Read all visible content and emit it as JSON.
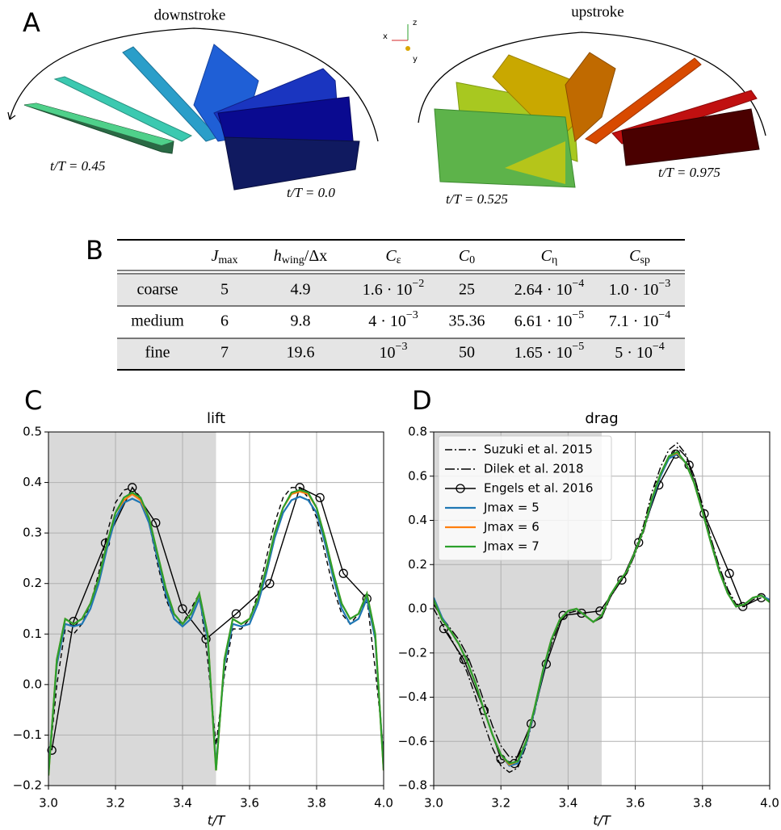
{
  "panel_a": {
    "label": "A",
    "downstroke": "downstroke",
    "upstroke": "upstroke",
    "times": [
      "t/T = 0.45",
      "t/T = 0.0",
      "t/T = 0.525",
      "t/T = 0.975"
    ],
    "axes": [
      "x",
      "z",
      "y"
    ]
  },
  "table": {
    "label": "B",
    "header": [
      {
        "main": "J",
        "sub": "max"
      },
      {
        "main": "h",
        "sub": "wing",
        "rest": "/Δx"
      },
      {
        "main": "C",
        "sub": "ε"
      },
      {
        "main": "C",
        "sub": "0"
      },
      {
        "main": "C",
        "sub": "η"
      },
      {
        "main": "C",
        "sub": "sp"
      }
    ],
    "rows": [
      [
        "coarse",
        5,
        4.9,
        {
          "main": "1.6 · 10",
          "sup": "−2"
        },
        25,
        {
          "main": "2.64 · 10",
          "sup": "−4"
        },
        {
          "main": "1.0 · 10",
          "sup": "−3"
        }
      ],
      [
        "medium",
        6,
        9.8,
        {
          "main": "4 · 10",
          "sup": "−3"
        },
        35.36,
        {
          "main": "6.61 · 10",
          "sup": "−5"
        },
        {
          "main": "7.1 · 10",
          "sup": "−4"
        }
      ],
      [
        "fine",
        7,
        19.6,
        {
          "main": "10",
          "sup": "−3"
        },
        50,
        {
          "main": "1.65 · 10",
          "sup": "−5"
        },
        {
          "main": "5 · 10",
          "sup": "−4"
        }
      ]
    ]
  },
  "chart_data": [
    {
      "type": "line",
      "panel_label": "C",
      "title": "lift",
      "xlabel": "t/T",
      "grid": true,
      "shade": [
        3.0,
        3.5
      ],
      "xlim": [
        3.0,
        4.0
      ],
      "ylim": [
        -0.2,
        0.5
      ],
      "xticks": [
        {
          "value": 3,
          "label": "3.0"
        },
        3.2,
        3.4,
        3.6,
        3.8,
        {
          "value": 4,
          "label": "4.0"
        }
      ],
      "yticks": [
        {
          "value": -0.2,
          "label": "−0.2"
        },
        {
          "value": -0.1,
          "label": "−0.1"
        },
        {
          "value": 0,
          "label": "0.0"
        },
        0.1,
        0.2,
        0.3,
        0.4,
        0.5
      ],
      "x": [
        3.0,
        3.025,
        3.05,
        3.075,
        3.1,
        3.125,
        3.15,
        3.175,
        3.2,
        3.225,
        3.25,
        3.275,
        3.3,
        3.325,
        3.35,
        3.375,
        3.4,
        3.425,
        3.45,
        3.475,
        3.5,
        3.525,
        3.55,
        3.575,
        3.6,
        3.625,
        3.65,
        3.675,
        3.7,
        3.725,
        3.75,
        3.775,
        3.8,
        3.825,
        3.85,
        3.875,
        3.9,
        3.925,
        3.95,
        3.975,
        4.0
      ],
      "series": [
        {
          "name": "Suzuki et al. 2015",
          "color": "#000000",
          "style": "dashed",
          "values": [
            -0.17,
            0.0,
            0.11,
            0.1,
            0.12,
            0.16,
            0.22,
            0.3,
            0.36,
            0.385,
            0.39,
            0.37,
            0.32,
            0.24,
            0.17,
            0.13,
            0.12,
            0.15,
            0.18,
            0.05,
            -0.12,
            0.02,
            0.11,
            0.11,
            0.13,
            0.18,
            0.25,
            0.32,
            0.37,
            0.39,
            0.39,
            0.37,
            0.33,
            0.26,
            0.19,
            0.14,
            0.12,
            0.14,
            0.17,
            0.03,
            -0.13
          ]
        },
        {
          "name": "Engels et al. 2016",
          "color": "#000000",
          "style": "solid",
          "marker": "circle",
          "x": [
            3.01,
            3.075,
            3.17,
            3.25,
            3.32,
            3.4,
            3.47,
            3.56,
            3.66,
            3.75,
            3.81,
            3.88,
            3.95
          ],
          "values": [
            -0.13,
            0.125,
            0.28,
            0.39,
            0.32,
            0.15,
            0.09,
            0.14,
            0.2,
            0.39,
            0.37,
            0.22,
            0.17
          ]
        },
        {
          "name": "Jmax = 5",
          "color": "#1f77b4",
          "style": "solid",
          "values": [
            -0.17,
            0.04,
            0.12,
            0.115,
            0.12,
            0.15,
            0.2,
            0.27,
            0.33,
            0.36,
            0.368,
            0.36,
            0.32,
            0.25,
            0.18,
            0.13,
            0.115,
            0.13,
            0.17,
            0.09,
            -0.16,
            0.04,
            0.12,
            0.115,
            0.12,
            0.16,
            0.22,
            0.29,
            0.34,
            0.365,
            0.372,
            0.365,
            0.34,
            0.28,
            0.21,
            0.15,
            0.12,
            0.13,
            0.17,
            0.09,
            -0.16
          ]
        },
        {
          "name": "Jmax = 6",
          "color": "#ff7f0e",
          "style": "solid",
          "values": [
            -0.18,
            0.05,
            0.13,
            0.12,
            0.13,
            0.16,
            0.21,
            0.28,
            0.34,
            0.365,
            0.377,
            0.365,
            0.33,
            0.26,
            0.19,
            0.14,
            0.12,
            0.14,
            0.18,
            0.1,
            -0.17,
            0.05,
            0.13,
            0.12,
            0.13,
            0.17,
            0.23,
            0.3,
            0.35,
            0.377,
            0.382,
            0.377,
            0.35,
            0.29,
            0.22,
            0.16,
            0.13,
            0.14,
            0.18,
            0.1,
            -0.17
          ]
        },
        {
          "name": "Jmax = 7",
          "color": "#2ca02c",
          "style": "solid",
          "values": [
            -0.18,
            0.05,
            0.13,
            0.12,
            0.13,
            0.16,
            0.21,
            0.28,
            0.34,
            0.37,
            0.38,
            0.37,
            0.33,
            0.26,
            0.19,
            0.14,
            0.12,
            0.14,
            0.18,
            0.1,
            -0.17,
            0.05,
            0.13,
            0.12,
            0.13,
            0.17,
            0.23,
            0.3,
            0.35,
            0.38,
            0.385,
            0.38,
            0.35,
            0.29,
            0.22,
            0.16,
            0.13,
            0.14,
            0.18,
            0.1,
            -0.17
          ]
        }
      ]
    },
    {
      "type": "line",
      "panel_label": "D",
      "title": "drag",
      "xlabel": "t/T",
      "grid": true,
      "shade": [
        3.0,
        3.5
      ],
      "legend": "upper left",
      "xlim": [
        3.0,
        4.0
      ],
      "ylim": [
        -0.8,
        0.8
      ],
      "xticks": [
        {
          "value": 3,
          "label": "3.0"
        },
        3.2,
        3.4,
        3.6,
        3.8,
        {
          "value": 4,
          "label": "4.0"
        }
      ],
      "yticks": [
        {
          "value": -0.8,
          "label": "−0.8"
        },
        {
          "value": -0.6,
          "label": "−0.6"
        },
        {
          "value": -0.4,
          "label": "−0.4"
        },
        {
          "value": -0.2,
          "label": "−0.2"
        },
        {
          "value": 0,
          "label": "0.0"
        },
        0.2,
        0.4,
        0.6,
        0.8
      ],
      "x": [
        3.0,
        3.025,
        3.05,
        3.075,
        3.1,
        3.125,
        3.15,
        3.175,
        3.2,
        3.225,
        3.25,
        3.275,
        3.3,
        3.325,
        3.35,
        3.375,
        3.4,
        3.425,
        3.45,
        3.475,
        3.5,
        3.525,
        3.55,
        3.575,
        3.6,
        3.625,
        3.65,
        3.675,
        3.7,
        3.725,
        3.75,
        3.775,
        3.8,
        3.825,
        3.85,
        3.875,
        3.9,
        3.925,
        3.95,
        3.975,
        4.0
      ],
      "series": [
        {
          "name": "Suzuki et al. 2015",
          "color": "#000000",
          "style": "dashdot",
          "values": [
            0.0,
            -0.07,
            -0.13,
            -0.2,
            -0.29,
            -0.4,
            -0.52,
            -0.63,
            -0.71,
            -0.74,
            -0.72,
            -0.62,
            -0.47,
            -0.3,
            -0.15,
            -0.06,
            -0.02,
            -0.01,
            -0.03,
            -0.06,
            -0.04,
            0.05,
            0.11,
            0.17,
            0.27,
            0.38,
            0.53,
            0.64,
            0.72,
            0.75,
            0.7,
            0.6,
            0.46,
            0.31,
            0.18,
            0.08,
            0.02,
            0.02,
            0.05,
            0.06,
            0.04
          ]
        },
        {
          "name": "Dilek et al. 2018",
          "color": "#000000",
          "style": "dashdot2",
          "values": [
            0.02,
            -0.04,
            -0.09,
            -0.14,
            -0.21,
            -0.31,
            -0.42,
            -0.53,
            -0.62,
            -0.67,
            -0.67,
            -0.6,
            -0.46,
            -0.3,
            -0.16,
            -0.06,
            -0.02,
            0.0,
            -0.03,
            -0.06,
            -0.04,
            0.05,
            0.11,
            0.16,
            0.25,
            0.35,
            0.48,
            0.6,
            0.68,
            0.73,
            0.69,
            0.6,
            0.47,
            0.32,
            0.19,
            0.09,
            0.02,
            0.01,
            0.04,
            0.06,
            0.04
          ]
        },
        {
          "name": "Engels et al. 2016",
          "color": "#000000",
          "style": "solid",
          "marker": "circle",
          "x": [
            3.03,
            3.09,
            3.15,
            3.2,
            3.24,
            3.29,
            3.335,
            3.385,
            3.44,
            3.495,
            3.56,
            3.61,
            3.67,
            3.72,
            3.76,
            3.805,
            3.88,
            3.92,
            3.975
          ],
          "values": [
            -0.09,
            -0.23,
            -0.46,
            -0.68,
            -0.7,
            -0.52,
            -0.25,
            -0.03,
            -0.02,
            -0.01,
            0.13,
            0.3,
            0.56,
            0.7,
            0.65,
            0.43,
            0.16,
            0.01,
            0.05
          ]
        },
        {
          "name": "Jmax = 5",
          "color": "#1f77b4",
          "style": "solid",
          "values": [
            0.05,
            -0.04,
            -0.1,
            -0.16,
            -0.24,
            -0.34,
            -0.46,
            -0.57,
            -0.66,
            -0.71,
            -0.7,
            -0.61,
            -0.46,
            -0.29,
            -0.14,
            -0.05,
            -0.01,
            0.0,
            -0.03,
            -0.06,
            -0.03,
            0.06,
            0.12,
            0.17,
            0.26,
            0.36,
            0.49,
            0.6,
            0.68,
            0.7,
            0.66,
            0.57,
            0.44,
            0.3,
            0.17,
            0.07,
            0.01,
            0.02,
            0.05,
            0.06,
            0.04
          ]
        },
        {
          "name": "Jmax = 6",
          "color": "#ff7f0e",
          "style": "solid",
          "values": [
            0.04,
            -0.05,
            -0.1,
            -0.16,
            -0.24,
            -0.34,
            -0.46,
            -0.57,
            -0.66,
            -0.705,
            -0.69,
            -0.6,
            -0.45,
            -0.28,
            -0.14,
            -0.05,
            -0.01,
            0.0,
            -0.03,
            -0.06,
            -0.03,
            0.06,
            0.12,
            0.17,
            0.26,
            0.36,
            0.5,
            0.61,
            0.69,
            0.705,
            0.66,
            0.57,
            0.44,
            0.3,
            0.17,
            0.07,
            0.01,
            0.02,
            0.05,
            0.06,
            0.03
          ]
        },
        {
          "name": "Jmax = 7",
          "color": "#2ca02c",
          "style": "solid",
          "values": [
            0.04,
            -0.05,
            -0.1,
            -0.16,
            -0.24,
            -0.34,
            -0.46,
            -0.57,
            -0.66,
            -0.7,
            -0.69,
            -0.6,
            -0.45,
            -0.28,
            -0.14,
            -0.05,
            -0.01,
            0.0,
            -0.03,
            -0.06,
            -0.03,
            0.06,
            0.12,
            0.17,
            0.26,
            0.36,
            0.5,
            0.61,
            0.69,
            0.71,
            0.66,
            0.57,
            0.44,
            0.3,
            0.17,
            0.07,
            0.01,
            0.02,
            0.05,
            0.06,
            0.03
          ]
        }
      ]
    }
  ]
}
